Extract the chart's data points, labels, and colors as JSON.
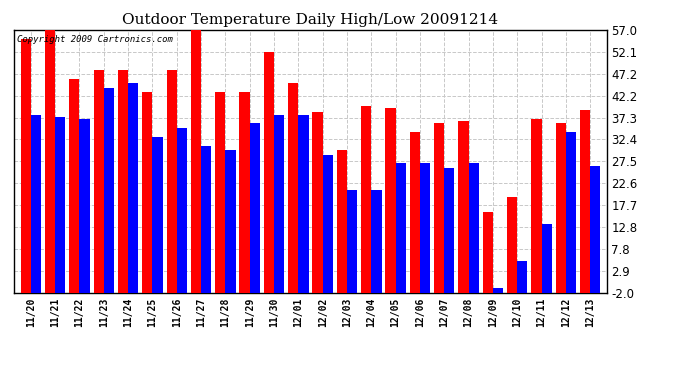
{
  "title": "Outdoor Temperature Daily High/Low 20091214",
  "copyright": "Copyright 2009 Cartronics.com",
  "background_color": "#ffffff",
  "grid_color": "#c8c8c8",
  "bar_color_high": "#ff0000",
  "bar_color_low": "#0000ff",
  "ylim": [
    -2.0,
    57.0
  ],
  "yticks": [
    -2.0,
    2.9,
    7.8,
    12.8,
    17.7,
    22.6,
    27.5,
    32.4,
    37.3,
    42.2,
    47.2,
    52.1,
    57.0
  ],
  "dates": [
    "11/20",
    "11/21",
    "11/22",
    "11/23",
    "11/24",
    "11/25",
    "11/26",
    "11/27",
    "11/28",
    "11/29",
    "11/30",
    "12/01",
    "12/02",
    "12/03",
    "12/04",
    "12/05",
    "12/06",
    "12/07",
    "12/08",
    "12/09",
    "12/10",
    "12/11",
    "12/12",
    "12/13"
  ],
  "highs": [
    55.0,
    57.0,
    46.0,
    48.0,
    48.0,
    43.0,
    48.0,
    57.0,
    43.0,
    43.0,
    52.0,
    45.0,
    38.5,
    30.0,
    40.0,
    39.5,
    34.0,
    36.0,
    36.5,
    16.0,
    19.5,
    37.0,
    36.0,
    39.0
  ],
  "lows": [
    38.0,
    37.5,
    37.0,
    44.0,
    45.0,
    33.0,
    35.0,
    31.0,
    30.0,
    36.0,
    38.0,
    38.0,
    29.0,
    21.0,
    21.0,
    27.0,
    27.0,
    26.0,
    27.0,
    -1.0,
    5.0,
    13.5,
    34.0,
    26.5
  ],
  "figsize": [
    6.9,
    3.75
  ],
  "dpi": 100
}
